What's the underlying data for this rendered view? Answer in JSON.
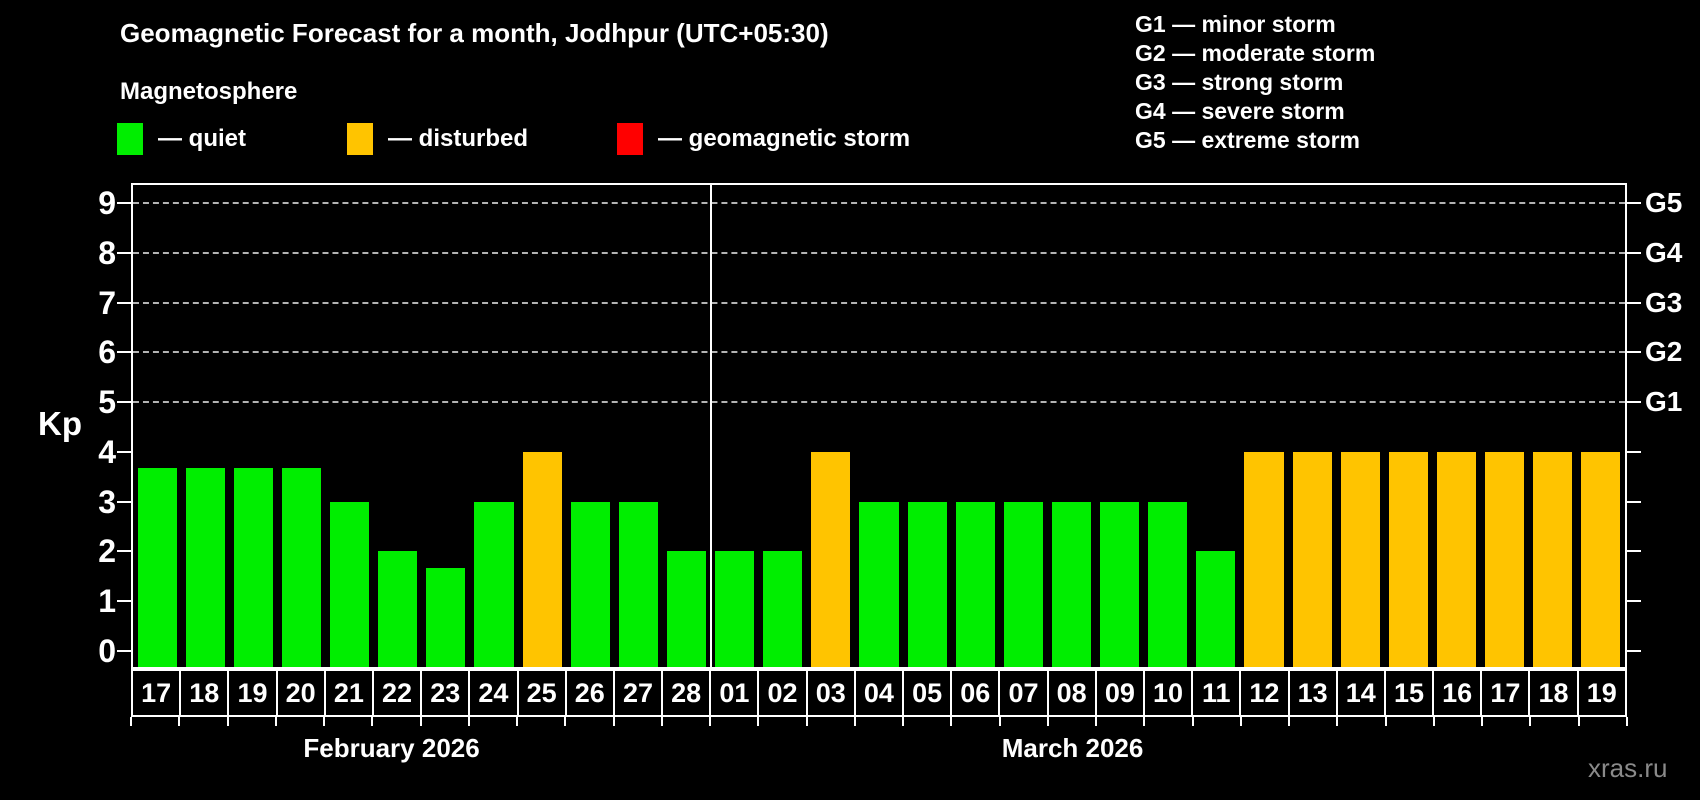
{
  "header": {
    "title": "Geomagnetic Forecast for a month, Jodhpur (UTC+05:30)",
    "subtitle": "Magnetosphere"
  },
  "legend": {
    "items": [
      {
        "name": "quiet",
        "label": "— quiet",
        "color": "#00ee00"
      },
      {
        "name": "disturbed",
        "label": "— disturbed",
        "color": "#ffc400"
      },
      {
        "name": "geomagnetic-storm",
        "label": "— geomagnetic storm",
        "color": "#ff0000"
      }
    ]
  },
  "g_scale_legend": {
    "lines": [
      "G1 — minor storm",
      "G2 — moderate storm",
      "G3 — strong storm",
      "G4 — severe storm",
      "G5 — extreme storm"
    ]
  },
  "footer": {
    "watermark": "xras.ru"
  },
  "chart_data": {
    "type": "bar",
    "title": "Geomagnetic Forecast for a month, Jodhpur (UTC+05:30)",
    "xlabel": "",
    "ylabel": "Kp",
    "ylim": [
      0,
      9
    ],
    "y_ticks": [
      0,
      1,
      2,
      3,
      4,
      5,
      6,
      7,
      8,
      9
    ],
    "gridlines_at": [
      5,
      6,
      7,
      8,
      9
    ],
    "grid": true,
    "legend_position": "top",
    "right_axis_labels": [
      {
        "label": "G1",
        "kp": 5
      },
      {
        "label": "G2",
        "kp": 6
      },
      {
        "label": "G3",
        "kp": 7
      },
      {
        "label": "G4",
        "kp": 8
      },
      {
        "label": "G5",
        "kp": 9
      }
    ],
    "status_colors": {
      "quiet": "#00ee00",
      "disturbed": "#ffc400",
      "storm": "#ff0000"
    },
    "months": [
      {
        "label": "February 2026",
        "days": 12
      },
      {
        "label": "March 2026",
        "days": 19
      }
    ],
    "bars": [
      {
        "month": "February 2026",
        "day": "17",
        "kp": 3.67,
        "status": "quiet"
      },
      {
        "month": "February 2026",
        "day": "18",
        "kp": 3.67,
        "status": "quiet"
      },
      {
        "month": "February 2026",
        "day": "19",
        "kp": 3.67,
        "status": "quiet"
      },
      {
        "month": "February 2026",
        "day": "20",
        "kp": 3.67,
        "status": "quiet"
      },
      {
        "month": "February 2026",
        "day": "21",
        "kp": 3,
        "status": "quiet"
      },
      {
        "month": "February 2026",
        "day": "22",
        "kp": 2,
        "status": "quiet"
      },
      {
        "month": "February 2026",
        "day": "23",
        "kp": 1.67,
        "status": "quiet"
      },
      {
        "month": "February 2026",
        "day": "24",
        "kp": 3,
        "status": "quiet"
      },
      {
        "month": "February 2026",
        "day": "25",
        "kp": 4,
        "status": "disturbed"
      },
      {
        "month": "February 2026",
        "day": "26",
        "kp": 3,
        "status": "quiet"
      },
      {
        "month": "February 2026",
        "day": "27",
        "kp": 3,
        "status": "quiet"
      },
      {
        "month": "February 2026",
        "day": "28",
        "kp": 2,
        "status": "quiet"
      },
      {
        "month": "March 2026",
        "day": "01",
        "kp": 2,
        "status": "quiet"
      },
      {
        "month": "March 2026",
        "day": "02",
        "kp": 2,
        "status": "quiet"
      },
      {
        "month": "March 2026",
        "day": "03",
        "kp": 4,
        "status": "disturbed"
      },
      {
        "month": "March 2026",
        "day": "04",
        "kp": 3,
        "status": "quiet"
      },
      {
        "month": "March 2026",
        "day": "05",
        "kp": 3,
        "status": "quiet"
      },
      {
        "month": "March 2026",
        "day": "06",
        "kp": 3,
        "status": "quiet"
      },
      {
        "month": "March 2026",
        "day": "07",
        "kp": 3,
        "status": "quiet"
      },
      {
        "month": "March 2026",
        "day": "08",
        "kp": 3,
        "status": "quiet"
      },
      {
        "month": "March 2026",
        "day": "09",
        "kp": 3,
        "status": "quiet"
      },
      {
        "month": "March 2026",
        "day": "10",
        "kp": 3,
        "status": "quiet"
      },
      {
        "month": "March 2026",
        "day": "11",
        "kp": 2,
        "status": "quiet"
      },
      {
        "month": "March 2026",
        "day": "12",
        "kp": 4,
        "status": "disturbed"
      },
      {
        "month": "March 2026",
        "day": "13",
        "kp": 4,
        "status": "disturbed"
      },
      {
        "month": "March 2026",
        "day": "14",
        "kp": 4,
        "status": "disturbed"
      },
      {
        "month": "March 2026",
        "day": "15",
        "kp": 4,
        "status": "disturbed"
      },
      {
        "month": "March 2026",
        "day": "16",
        "kp": 4,
        "status": "disturbed"
      },
      {
        "month": "March 2026",
        "day": "17",
        "kp": 4,
        "status": "disturbed"
      },
      {
        "month": "March 2026",
        "day": "18",
        "kp": 4,
        "status": "disturbed"
      },
      {
        "month": "March 2026",
        "day": "19",
        "kp": 4,
        "status": "disturbed"
      }
    ]
  }
}
